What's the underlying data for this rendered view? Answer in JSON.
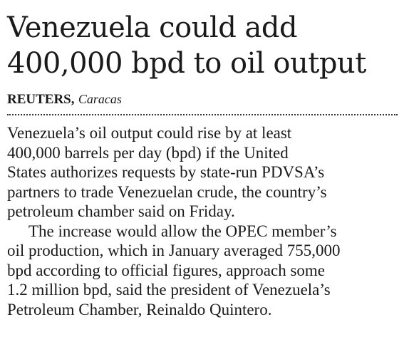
{
  "article": {
    "headline": [
      "Venezuela could add",
      "400,000 bpd to oil output"
    ],
    "byline": {
      "agency": "REUTERS,",
      "dateline": "Caracas"
    },
    "paragraphs": [
      [
        "Venezuela’s oil output could rise by at least",
        "400,000 barrels per day (bpd) if the United",
        "States authorizes requests by state-run PDVSA’s",
        "partners to trade Venezuelan crude, the country’s",
        "petroleum chamber said on Friday."
      ],
      [
        "The increase would allow the OPEC member’s",
        "oil production, which in January averaged 755,000",
        "bpd according to official figures, approach some",
        "1.2 million bpd, said the president of Venezuela’s",
        "Petroleum Chamber, Reinaldo Quintero."
      ]
    ]
  }
}
